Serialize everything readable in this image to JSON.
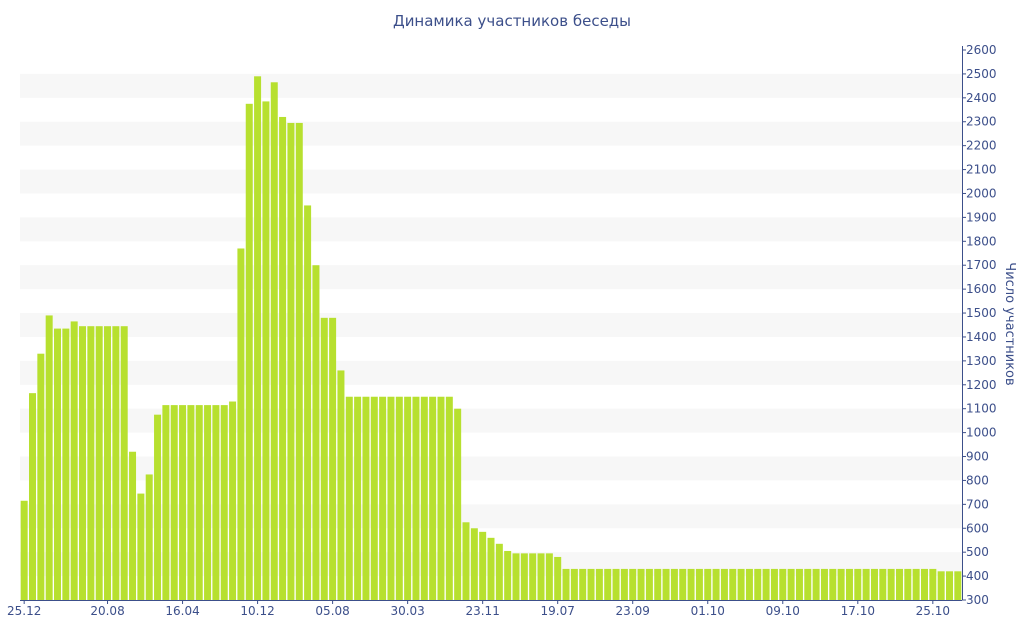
{
  "chart_data": {
    "type": "bar",
    "title": "Динамика участников беседы",
    "ylabel": "Число участников",
    "xlabel": "",
    "ylim": [
      300,
      2600
    ],
    "yticks": [
      300,
      400,
      500,
      600,
      700,
      800,
      900,
      1000,
      1100,
      1200,
      1300,
      1400,
      1500,
      1600,
      1700,
      1800,
      1900,
      2000,
      2100,
      2200,
      2300,
      2400,
      2500,
      2600
    ],
    "y_axis_side": "right",
    "x_tick_labels": [
      {
        "index": 0,
        "label": "25.12"
      },
      {
        "index": 10,
        "label": "20.08"
      },
      {
        "index": 19,
        "label": "16.04"
      },
      {
        "index": 28,
        "label": "10.12"
      },
      {
        "index": 37,
        "label": "05.08"
      },
      {
        "index": 46,
        "label": "30.03"
      },
      {
        "index": 55,
        "label": "23.11"
      },
      {
        "index": 64,
        "label": "19.07"
      },
      {
        "index": 73,
        "label": "23.09"
      },
      {
        "index": 82,
        "label": "01.10"
      },
      {
        "index": 91,
        "label": "09.10"
      },
      {
        "index": 100,
        "label": "17.10"
      },
      {
        "index": 109,
        "label": "25.10"
      }
    ],
    "bar_color": "#b7e02f",
    "grid": "alternating horizontal bands",
    "values": [
      715,
      1165,
      1330,
      1490,
      1435,
      1435,
      1465,
      1445,
      1445,
      1445,
      1445,
      1445,
      1445,
      920,
      745,
      825,
      1075,
      1115,
      1115,
      1115,
      1115,
      1115,
      1115,
      1115,
      1115,
      1130,
      1770,
      2375,
      2490,
      2385,
      2465,
      2320,
      2295,
      2295,
      1950,
      1700,
      1480,
      1480,
      1260,
      1150,
      1150,
      1150,
      1150,
      1150,
      1150,
      1150,
      1150,
      1150,
      1150,
      1150,
      1150,
      1150,
      1100,
      625,
      600,
      585,
      560,
      535,
      505,
      495,
      495,
      495,
      495,
      495,
      480,
      430,
      430,
      430,
      430,
      430,
      430,
      430,
      430,
      430,
      430,
      430,
      430,
      430,
      430,
      430,
      430,
      430,
      430,
      430,
      430,
      430,
      430,
      430,
      430,
      430,
      430,
      430,
      430,
      430,
      430,
      430,
      430,
      430,
      430,
      430,
      430,
      430,
      430,
      430,
      430,
      430,
      430,
      430,
      430,
      430,
      420,
      420,
      420
    ]
  }
}
